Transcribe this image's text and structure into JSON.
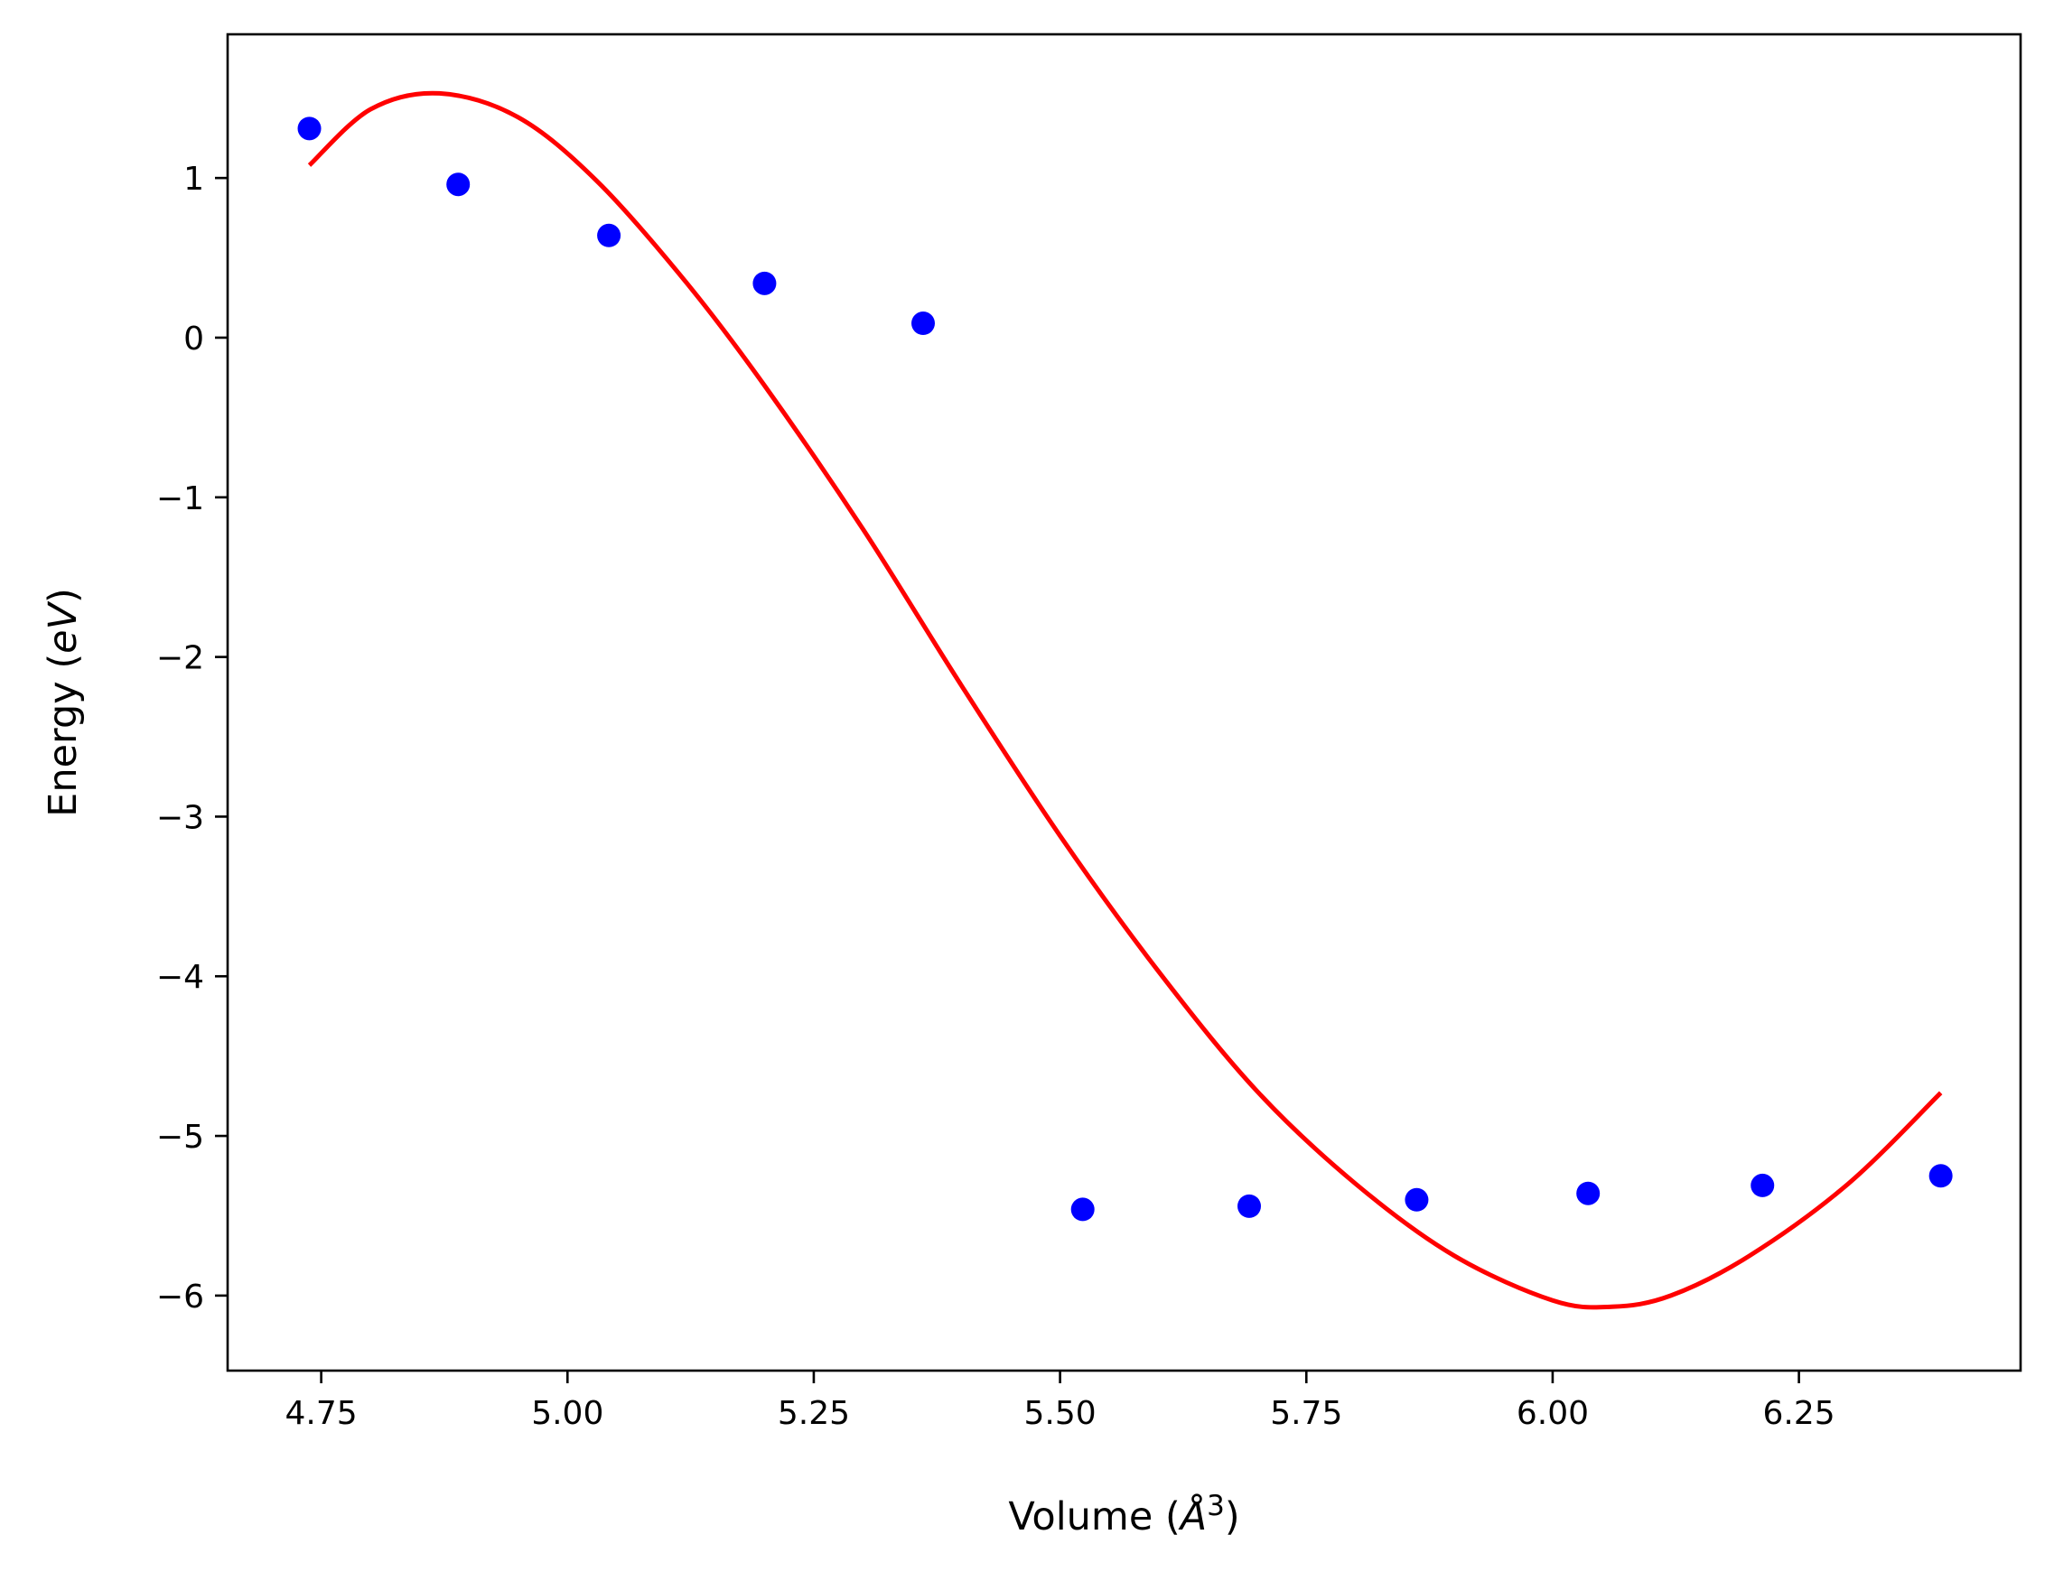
{
  "chart_data": {
    "type": "scatter",
    "title": "",
    "xlabel": {
      "prefix": "Volume (",
      "unit_letter": "Å",
      "superscript": "3",
      "suffix": ")"
    },
    "ylabel": {
      "prefix": "Energy (",
      "unit": "eV",
      "suffix": ")"
    },
    "xlim": [
      4.655,
      6.475
    ],
    "ylim": [
      -6.47,
      1.9
    ],
    "xticks": [
      4.75,
      5.0,
      5.25,
      5.5,
      5.75,
      6.0,
      6.25
    ],
    "xtick_labels": [
      "4.75",
      "5.00",
      "5.25",
      "5.50",
      "5.75",
      "6.00",
      "6.25"
    ],
    "yticks": [
      1,
      0,
      -1,
      -2,
      -3,
      -4,
      -5,
      -6
    ],
    "ytick_labels": [
      "1",
      "0",
      "−1",
      "−2",
      "−3",
      "−4",
      "−5",
      "−6"
    ],
    "grid": false,
    "series": [
      {
        "kind": "points",
        "color": "#0000ff",
        "x": [
          4.738,
          4.889,
          5.042,
          5.2,
          5.361,
          5.523,
          5.692,
          5.862,
          6.036,
          6.213,
          6.394
        ],
        "y": [
          1.31,
          0.96,
          0.64,
          0.34,
          0.09,
          -5.46,
          -5.44,
          -5.4,
          -5.36,
          -5.31,
          -5.25
        ]
      },
      {
        "kind": "fit-curve",
        "color": "#ff0000",
        "x": [
          4.738,
          4.8,
          4.87,
          4.95,
          5.03,
          5.12,
          5.2,
          5.3,
          5.4,
          5.5,
          5.6,
          5.7,
          5.8,
          5.9,
          6.0,
          6.06,
          6.12,
          6.2,
          6.3,
          6.394
        ],
        "y": [
          1.08,
          1.43,
          1.53,
          1.38,
          0.98,
          0.35,
          -0.3,
          -1.2,
          -2.18,
          -3.12,
          -3.97,
          -4.72,
          -5.3,
          -5.75,
          -6.03,
          -6.07,
          -6.0,
          -5.75,
          -5.3,
          -4.73
        ]
      }
    ]
  }
}
